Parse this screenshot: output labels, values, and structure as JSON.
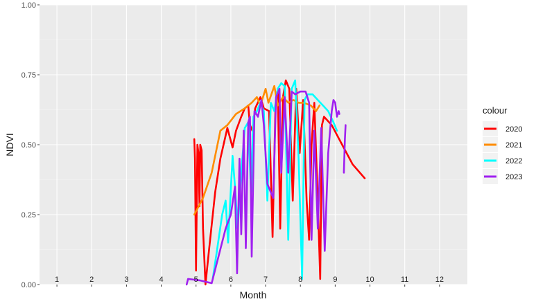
{
  "chart_data": {
    "type": "line",
    "title": "",
    "xlabel": "Month",
    "ylabel": "NDVI",
    "xlim": [
      0.5,
      12.8
    ],
    "ylim": [
      0,
      1
    ],
    "y_ticks": [
      "0.00",
      "0.25",
      "0.50",
      "0.75",
      "1.00"
    ],
    "y_tick_values": [
      0,
      0.25,
      0.5,
      0.75,
      1.0
    ],
    "x_ticks": [
      "1",
      "2",
      "3",
      "4",
      "5",
      "6",
      "7",
      "8",
      "9",
      "10",
      "11",
      "12"
    ],
    "grid": true,
    "legend": {
      "title": "colour",
      "position": "right"
    },
    "series": [
      {
        "name": "2020",
        "color": "#ff0000",
        "points": [
          [
            4.95,
            0.52
          ],
          [
            4.97,
            0.45
          ],
          [
            5.0,
            0.05
          ],
          [
            5.04,
            0.5
          ],
          [
            5.07,
            0.47
          ],
          [
            5.1,
            0.28
          ],
          [
            5.12,
            0.5
          ],
          [
            5.16,
            0.48
          ],
          [
            5.2,
            0.2
          ],
          [
            5.27,
            0.0
          ],
          [
            5.37,
            0.12
          ],
          [
            5.55,
            0.33
          ],
          [
            5.7,
            0.45
          ],
          [
            5.9,
            0.56
          ],
          [
            6.05,
            0.49
          ],
          [
            6.15,
            0.55
          ],
          [
            6.3,
            0.6
          ],
          [
            6.4,
            0.63
          ],
          [
            6.5,
            0.64
          ],
          [
            6.55,
            0.57
          ],
          [
            6.62,
            0.55
          ],
          [
            6.7,
            0.63
          ],
          [
            6.85,
            0.67
          ],
          [
            6.95,
            0.63
          ],
          [
            7.1,
            0.62
          ],
          [
            7.2,
            0.17
          ],
          [
            7.28,
            0.62
          ],
          [
            7.35,
            0.7
          ],
          [
            7.42,
            0.2
          ],
          [
            7.5,
            0.67
          ],
          [
            7.58,
            0.73
          ],
          [
            7.68,
            0.7
          ],
          [
            7.78,
            0.3
          ],
          [
            7.88,
            0.7
          ],
          [
            7.98,
            0.47
          ],
          [
            8.08,
            0.66
          ],
          [
            8.18,
            0.3
          ],
          [
            8.25,
            0.16
          ],
          [
            8.32,
            0.5
          ],
          [
            8.4,
            0.65
          ],
          [
            8.5,
            0.3
          ],
          [
            8.57,
            0.02
          ],
          [
            8.62,
            0.57
          ],
          [
            8.68,
            0.6
          ],
          [
            8.9,
            0.57
          ],
          [
            9.2,
            0.5
          ],
          [
            9.5,
            0.43
          ],
          [
            9.85,
            0.38
          ]
        ]
      },
      {
        "name": "2021",
        "color": "#ff8c00",
        "points": [
          [
            4.95,
            0.25
          ],
          [
            5.2,
            0.31
          ],
          [
            5.45,
            0.4
          ],
          [
            5.7,
            0.55
          ],
          [
            5.9,
            0.57
          ],
          [
            6.15,
            0.61
          ],
          [
            6.4,
            0.63
          ],
          [
            6.6,
            0.65
          ],
          [
            6.75,
            0.67
          ],
          [
            6.85,
            0.64
          ],
          [
            7.0,
            0.7
          ],
          [
            7.08,
            0.65
          ],
          [
            7.25,
            0.71
          ],
          [
            7.35,
            0.64
          ],
          [
            7.5,
            0.67
          ],
          [
            7.65,
            0.65
          ],
          [
            7.8,
            0.66
          ],
          [
            7.95,
            0.65
          ],
          [
            8.1,
            0.65
          ],
          [
            8.3,
            0.64
          ],
          [
            8.45,
            0.62
          ],
          [
            8.55,
            0.64
          ]
        ]
      },
      {
        "name": "2022",
        "color": "#00ffff",
        "points": [
          [
            5.48,
            0.02
          ],
          [
            5.6,
            0.12
          ],
          [
            5.75,
            0.25
          ],
          [
            5.85,
            0.3
          ],
          [
            5.92,
            0.15
          ],
          [
            6.05,
            0.46
          ],
          [
            6.12,
            0.35
          ],
          [
            6.2,
            0.2
          ],
          [
            6.3,
            0.4
          ],
          [
            6.4,
            0.56
          ],
          [
            6.5,
            0.58
          ],
          [
            6.58,
            0.33
          ],
          [
            6.65,
            0.6
          ],
          [
            6.75,
            0.62
          ],
          [
            6.85,
            0.65
          ],
          [
            6.95,
            0.62
          ],
          [
            7.05,
            0.3
          ],
          [
            7.15,
            0.65
          ],
          [
            7.25,
            0.62
          ],
          [
            7.35,
            0.7
          ],
          [
            7.45,
            0.72
          ],
          [
            7.55,
            0.71
          ],
          [
            7.65,
            0.16
          ],
          [
            7.75,
            0.7
          ],
          [
            7.85,
            0.73
          ],
          [
            7.95,
            0.45
          ],
          [
            8.05,
            0.02
          ],
          [
            8.12,
            0.66
          ],
          [
            8.2,
            0.68
          ],
          [
            8.35,
            0.68
          ],
          [
            8.5,
            0.66
          ],
          [
            8.65,
            0.64
          ],
          [
            8.8,
            0.62
          ],
          [
            8.95,
            0.58
          ],
          [
            9.05,
            0.55
          ]
        ]
      },
      {
        "name": "2023",
        "color": "#a020f0",
        "points": [
          [
            4.73,
            0.0
          ],
          [
            4.77,
            0.02
          ],
          [
            5.1,
            0.015
          ],
          [
            5.45,
            0.005
          ],
          [
            5.85,
            0.2
          ],
          [
            6.0,
            0.25
          ],
          [
            6.12,
            0.35
          ],
          [
            6.18,
            0.04
          ],
          [
            6.25,
            0.45
          ],
          [
            6.3,
            0.18
          ],
          [
            6.37,
            0.55
          ],
          [
            6.43,
            0.13
          ],
          [
            6.5,
            0.58
          ],
          [
            6.55,
            0.6
          ],
          [
            6.6,
            0.1
          ],
          [
            6.68,
            0.62
          ],
          [
            6.78,
            0.6
          ],
          [
            6.88,
            0.66
          ],
          [
            6.95,
            0.57
          ],
          [
            7.05,
            0.36
          ],
          [
            7.15,
            0.33
          ],
          [
            7.22,
            0.31
          ],
          [
            7.3,
            0.67
          ],
          [
            7.4,
            0.7
          ],
          [
            7.45,
            0.4
          ],
          [
            7.55,
            0.67
          ],
          [
            7.65,
            0.4
          ],
          [
            7.75,
            0.69
          ],
          [
            7.85,
            0.68
          ],
          [
            8.0,
            0.69
          ],
          [
            8.15,
            0.69
          ],
          [
            8.25,
            0.65
          ],
          [
            8.32,
            0.16
          ],
          [
            8.4,
            0.55
          ],
          [
            8.5,
            0.2
          ],
          [
            8.6,
            0.56
          ],
          [
            8.7,
            0.12
          ],
          [
            8.8,
            0.47
          ],
          [
            8.9,
            0.62
          ],
          [
            8.95,
            0.66
          ],
          [
            9.0,
            0.65
          ],
          [
            9.05,
            0.6
          ],
          [
            9.1,
            0.62
          ],
          [
            9.12,
            0.61
          ],
          null,
          [
            9.25,
            0.4
          ],
          [
            9.28,
            0.52
          ],
          [
            9.3,
            0.57
          ]
        ]
      }
    ]
  }
}
